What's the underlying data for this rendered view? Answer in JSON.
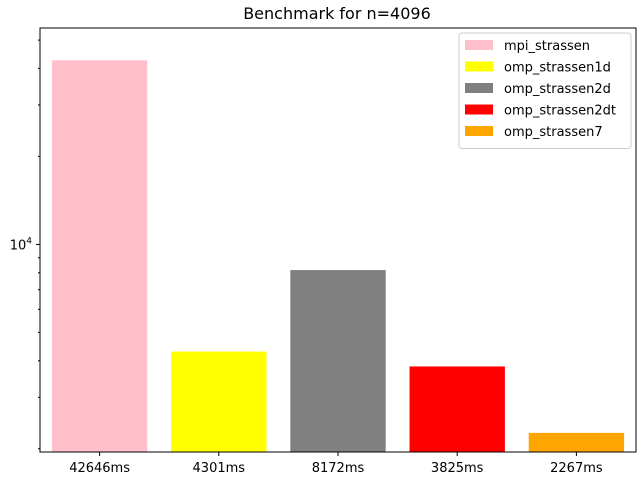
{
  "chart_data": {
    "type": "bar",
    "title": "Benchmark for n=4096",
    "xlabel": "",
    "ylabel": "",
    "yscale": "log",
    "ylim": [
      1950,
      55000
    ],
    "categories": [
      "42646ms",
      "4301ms",
      "8172ms",
      "3825ms",
      "2267ms"
    ],
    "values": [
      42646,
      4301,
      8172,
      3825,
      2267
    ],
    "y_tick_label": {
      "base": "10",
      "exponent": "4",
      "value": 10000
    },
    "grid": false,
    "legend": {
      "position": "top-right",
      "entries": [
        {
          "name": "mpi_strassen",
          "color": "#ffc0cb"
        },
        {
          "name": "omp_strassen1d",
          "color": "#ffff00"
        },
        {
          "name": "omp_strassen2d",
          "color": "#808080"
        },
        {
          "name": "omp_strassen2dt",
          "color": "#ff0000"
        },
        {
          "name": "omp_strassen7",
          "color": "#ffa500"
        }
      ]
    },
    "colors": [
      "#ffc0cb",
      "#ffff00",
      "#808080",
      "#ff0000",
      "#ffa500"
    ]
  }
}
